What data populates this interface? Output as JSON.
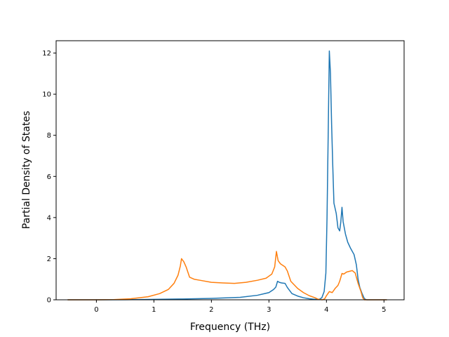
{
  "chart_data": {
    "type": "line",
    "xlabel": "Frequency (THz)",
    "ylabel": "Partial Density of States",
    "xlim": [
      -0.7,
      5.35
    ],
    "ylim": [
      0,
      12.6
    ],
    "x_ticks": [
      "0",
      "1",
      "2",
      "3",
      "4",
      "5"
    ],
    "y_ticks": [
      "0",
      "2",
      "4",
      "6",
      "8",
      "10",
      "12"
    ],
    "x_tick_values": [
      0,
      1,
      2,
      3,
      4,
      5
    ],
    "y_tick_values": [
      0,
      2,
      4,
      6,
      8,
      10,
      12
    ],
    "colors": {
      "series1": "#1f77b4",
      "series2": "#ff7f0e"
    },
    "grid": false,
    "legend": "none",
    "series": [
      {
        "color": "#1f77b4",
        "points": [
          [
            -0.5,
            0
          ],
          [
            0,
            0
          ],
          [
            0.5,
            0.005
          ],
          [
            1.0,
            0.02
          ],
          [
            1.5,
            0.04
          ],
          [
            2.0,
            0.07
          ],
          [
            2.5,
            0.12
          ],
          [
            2.8,
            0.22
          ],
          [
            3.0,
            0.35
          ],
          [
            3.08,
            0.5
          ],
          [
            3.12,
            0.62
          ],
          [
            3.15,
            0.9
          ],
          [
            3.18,
            0.85
          ],
          [
            3.22,
            0.82
          ],
          [
            3.28,
            0.8
          ],
          [
            3.32,
            0.6
          ],
          [
            3.4,
            0.3
          ],
          [
            3.5,
            0.18
          ],
          [
            3.6,
            0.1
          ],
          [
            3.7,
            0.05
          ],
          [
            3.8,
            0.02
          ],
          [
            3.88,
            0.03
          ],
          [
            3.92,
            0.1
          ],
          [
            3.96,
            0.4
          ],
          [
            3.99,
            1.3
          ],
          [
            4.01,
            4.0
          ],
          [
            4.03,
            8.0
          ],
          [
            4.05,
            12.1
          ],
          [
            4.07,
            11.0
          ],
          [
            4.09,
            8.5
          ],
          [
            4.11,
            6.5
          ],
          [
            4.13,
            4.7
          ],
          [
            4.17,
            4.2
          ],
          [
            4.2,
            3.5
          ],
          [
            4.23,
            3.35
          ],
          [
            4.25,
            3.8
          ],
          [
            4.27,
            4.5
          ],
          [
            4.29,
            3.8
          ],
          [
            4.33,
            3.2
          ],
          [
            4.37,
            2.8
          ],
          [
            4.42,
            2.5
          ],
          [
            4.48,
            2.2
          ],
          [
            4.52,
            1.7
          ],
          [
            4.55,
            1.0
          ],
          [
            4.58,
            0.6
          ],
          [
            4.62,
            0.3
          ],
          [
            4.66,
            0.05
          ],
          [
            4.7,
            0
          ],
          [
            5.05,
            0
          ]
        ]
      },
      {
        "color": "#ff7f0e",
        "points": [
          [
            -0.5,
            0
          ],
          [
            0,
            0
          ],
          [
            0.3,
            0.01
          ],
          [
            0.6,
            0.05
          ],
          [
            0.9,
            0.15
          ],
          [
            1.1,
            0.3
          ],
          [
            1.25,
            0.5
          ],
          [
            1.35,
            0.8
          ],
          [
            1.42,
            1.2
          ],
          [
            1.46,
            1.65
          ],
          [
            1.48,
            2.0
          ],
          [
            1.52,
            1.85
          ],
          [
            1.56,
            1.6
          ],
          [
            1.62,
            1.1
          ],
          [
            1.7,
            1.0
          ],
          [
            1.8,
            0.95
          ],
          [
            2.0,
            0.85
          ],
          [
            2.2,
            0.82
          ],
          [
            2.4,
            0.8
          ],
          [
            2.6,
            0.85
          ],
          [
            2.8,
            0.95
          ],
          [
            2.95,
            1.05
          ],
          [
            3.05,
            1.25
          ],
          [
            3.1,
            1.6
          ],
          [
            3.13,
            2.35
          ],
          [
            3.16,
            1.9
          ],
          [
            3.2,
            1.75
          ],
          [
            3.28,
            1.6
          ],
          [
            3.32,
            1.4
          ],
          [
            3.38,
            0.9
          ],
          [
            3.5,
            0.55
          ],
          [
            3.6,
            0.35
          ],
          [
            3.7,
            0.2
          ],
          [
            3.8,
            0.1
          ],
          [
            3.86,
            0.02
          ],
          [
            3.93,
            0
          ],
          [
            3.97,
            0.05
          ],
          [
            4.0,
            0.2
          ],
          [
            4.05,
            0.4
          ],
          [
            4.1,
            0.35
          ],
          [
            4.15,
            0.55
          ],
          [
            4.2,
            0.7
          ],
          [
            4.23,
            0.9
          ],
          [
            4.27,
            1.28
          ],
          [
            4.3,
            1.25
          ],
          [
            4.35,
            1.35
          ],
          [
            4.45,
            1.42
          ],
          [
            4.5,
            1.3
          ],
          [
            4.55,
            0.8
          ],
          [
            4.6,
            0.4
          ],
          [
            4.63,
            0.1
          ],
          [
            4.66,
            0
          ],
          [
            5.05,
            0
          ]
        ]
      }
    ]
  }
}
